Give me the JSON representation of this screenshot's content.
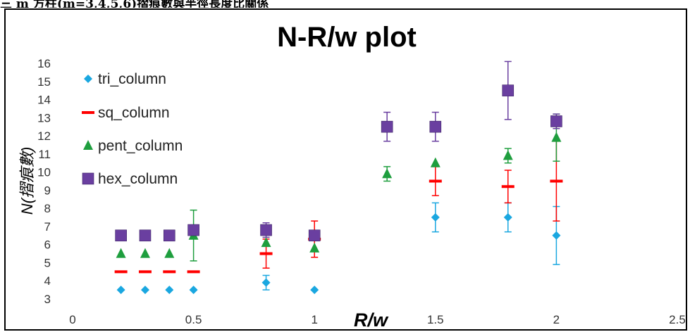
{
  "page": {
    "top_caption": "三 m 方柱(m=3,4,5,6)摺痕數與半徑長度比關係"
  },
  "chart_data": {
    "type": "scatter",
    "title": "N-R/w plot",
    "xlabel": "R/w",
    "ylabel": "N(摺痕數)",
    "xlim": [
      0,
      2.5
    ],
    "ylim": [
      3,
      16
    ],
    "x_ticks": [
      "0",
      "0.5",
      "1",
      "1.5",
      "2",
      "2.5"
    ],
    "y_ticks": [
      "3",
      "4",
      "5",
      "6",
      "7",
      "8",
      "9",
      "10",
      "11",
      "12",
      "13",
      "14",
      "15",
      "16"
    ],
    "grid": false,
    "legend_position": "top-left",
    "series": [
      {
        "name": "tri_column",
        "marker": "diamond",
        "color": "#1aa7e0",
        "points": [
          {
            "x": 0.2,
            "y": 3.5
          },
          {
            "x": 0.3,
            "y": 3.5
          },
          {
            "x": 0.4,
            "y": 3.5
          },
          {
            "x": 0.5,
            "y": 3.5
          },
          {
            "x": 0.8,
            "y": 3.9,
            "err": 0.4
          },
          {
            "x": 1.0,
            "y": 3.5
          },
          {
            "x": 1.5,
            "y": 7.5,
            "err": 0.8
          },
          {
            "x": 1.8,
            "y": 7.5,
            "err": 0.8
          },
          {
            "x": 2.0,
            "y": 6.5,
            "err": 1.6
          }
        ]
      },
      {
        "name": "sq_column",
        "marker": "dash",
        "color": "#ff0000",
        "points": [
          {
            "x": 0.2,
            "y": 4.5
          },
          {
            "x": 0.3,
            "y": 4.5
          },
          {
            "x": 0.4,
            "y": 4.5
          },
          {
            "x": 0.5,
            "y": 4.5
          },
          {
            "x": 0.8,
            "y": 5.5,
            "err": 0.8
          },
          {
            "x": 1.0,
            "y": 6.3,
            "err": 1.0
          },
          {
            "x": 1.5,
            "y": 9.5,
            "err": 0.8
          },
          {
            "x": 1.8,
            "y": 9.2,
            "err": 0.9
          },
          {
            "x": 2.0,
            "y": 9.5,
            "err": 2.2
          }
        ]
      },
      {
        "name": "pent_column",
        "marker": "triangle",
        "color": "#1e9e3e",
        "points": [
          {
            "x": 0.2,
            "y": 5.5
          },
          {
            "x": 0.3,
            "y": 5.5
          },
          {
            "x": 0.4,
            "y": 5.5
          },
          {
            "x": 0.5,
            "y": 6.5,
            "err": 1.4
          },
          {
            "x": 0.8,
            "y": 6.1
          },
          {
            "x": 1.0,
            "y": 5.8
          },
          {
            "x": 1.3,
            "y": 9.9,
            "err": 0.4
          },
          {
            "x": 1.5,
            "y": 10.5
          },
          {
            "x": 1.8,
            "y": 10.9,
            "err": 0.4
          },
          {
            "x": 2.0,
            "y": 11.9,
            "err": 1.3
          }
        ]
      },
      {
        "name": "hex_column",
        "marker": "square",
        "color": "#6a3fa0",
        "points": [
          {
            "x": 0.2,
            "y": 6.5
          },
          {
            "x": 0.3,
            "y": 6.5
          },
          {
            "x": 0.4,
            "y": 6.5
          },
          {
            "x": 0.5,
            "y": 6.8
          },
          {
            "x": 0.8,
            "y": 6.8,
            "err": 0.4
          },
          {
            "x": 1.0,
            "y": 6.5
          },
          {
            "x": 1.3,
            "y": 12.5,
            "err": 0.8
          },
          {
            "x": 1.5,
            "y": 12.5,
            "err": 0.8
          },
          {
            "x": 1.8,
            "y": 14.5,
            "err": 1.6
          },
          {
            "x": 2.0,
            "y": 12.8,
            "err": 0.4
          }
        ]
      }
    ]
  }
}
